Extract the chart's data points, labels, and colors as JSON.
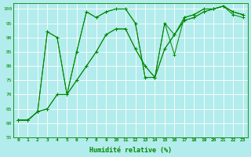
{
  "xlabel": "Humidité relative (%)",
  "background_color": "#b3ecec",
  "grid_color": "#ffffff",
  "line_color": "#008800",
  "xlim": [
    -0.5,
    23.5
  ],
  "ylim": [
    55,
    102
  ],
  "yticks": [
    55,
    60,
    65,
    70,
    75,
    80,
    85,
    90,
    95,
    100
  ],
  "xticks": [
    0,
    1,
    2,
    3,
    4,
    5,
    6,
    7,
    8,
    9,
    10,
    11,
    12,
    13,
    14,
    15,
    16,
    17,
    18,
    19,
    20,
    21,
    22,
    23
  ],
  "line1": [
    61,
    61,
    64,
    92,
    90,
    70,
    85,
    99,
    97,
    99,
    100,
    100,
    95,
    76,
    76,
    95,
    84,
    97,
    98,
    100,
    100,
    101,
    98,
    97
  ],
  "line2": [
    61,
    61,
    64,
    92,
    90,
    70,
    85,
    99,
    97,
    99,
    100,
    100,
    95,
    76,
    76,
    95,
    91,
    97,
    98,
    100,
    100,
    101,
    99,
    98
  ],
  "line3": [
    61,
    61,
    64,
    65,
    70,
    70,
    75,
    80,
    85,
    91,
    93,
    93,
    86,
    80,
    76,
    86,
    91,
    96,
    97,
    99,
    100,
    101,
    99,
    98
  ],
  "line4": [
    61,
    61,
    64,
    65,
    70,
    70,
    75,
    80,
    85,
    91,
    93,
    93,
    86,
    80,
    76,
    86,
    91,
    96,
    97,
    99,
    100,
    101,
    99,
    98
  ]
}
